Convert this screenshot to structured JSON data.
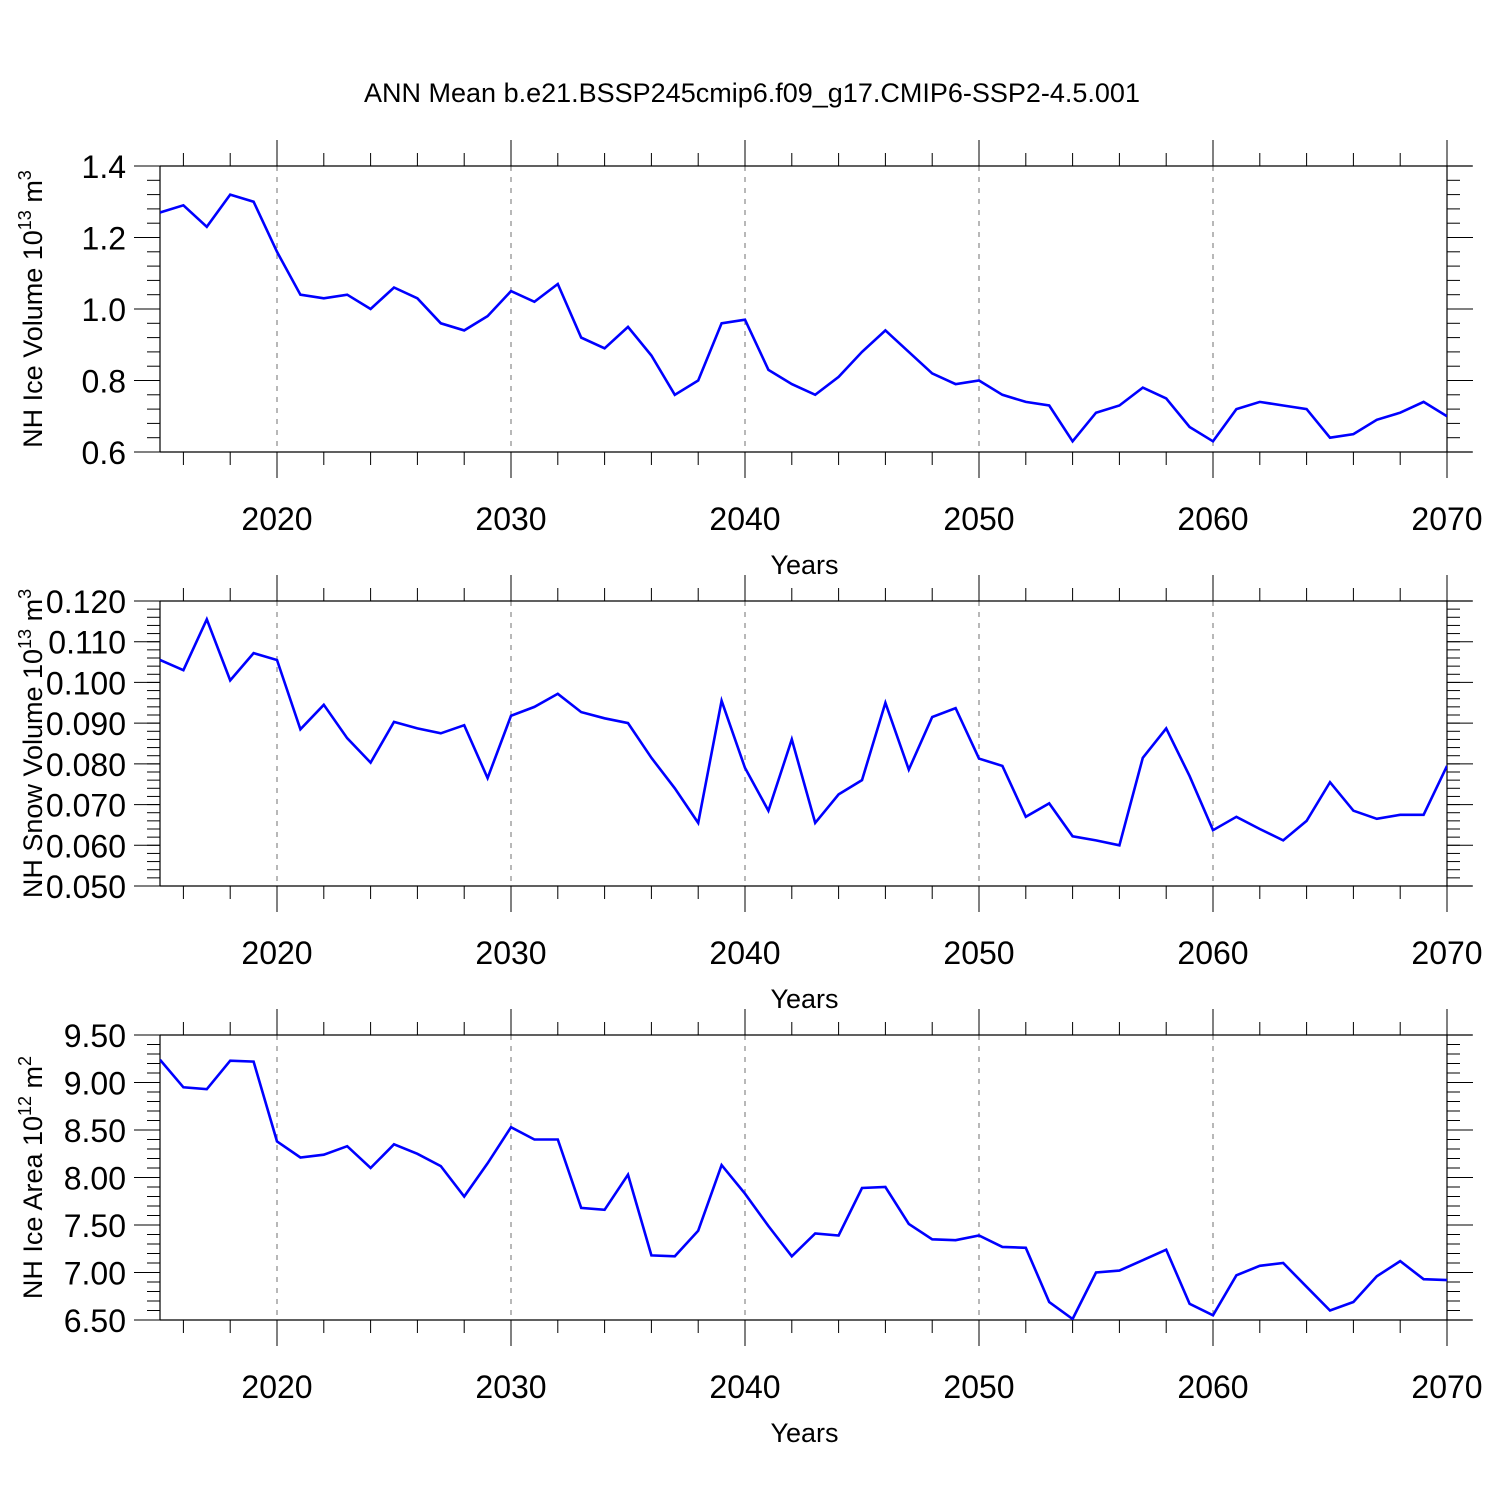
{
  "title": "ANN Mean b.e21.BSSP245cmip6.f09_g17.CMIP6-SSP2-4.5.001",
  "colors": {
    "line": "#0000ff",
    "grid": "#888888",
    "frame": "#000000"
  },
  "chart_data": [
    {
      "type": "line",
      "xlabel": "Years",
      "ylabel": "NH Ice Volume 10",
      "ylabel_sup": "13",
      "ylabel_unit": " m",
      "ylabel_unit_sup": "3",
      "xlim": [
        2015,
        2070
      ],
      "ylim": [
        0.6,
        1.4
      ],
      "xticks": [
        2020,
        2030,
        2040,
        2050,
        2060,
        2070
      ],
      "xtick_labels": [
        "2020",
        "2030",
        "2040",
        "2050",
        "2060",
        "2070"
      ],
      "yticks": [
        0.6,
        0.8,
        1.0,
        1.2,
        1.4
      ],
      "ytick_labels": [
        "0.6",
        "0.8",
        "1.0",
        "1.2",
        "1.4"
      ],
      "y_minor_step": 0.04,
      "grid": "vertical dashed at major x ticks",
      "x": [
        2015,
        2016,
        2017,
        2018,
        2019,
        2020,
        2021,
        2022,
        2023,
        2024,
        2025,
        2026,
        2027,
        2028,
        2029,
        2030,
        2031,
        2032,
        2033,
        2034,
        2035,
        2036,
        2037,
        2038,
        2039,
        2040,
        2041,
        2042,
        2043,
        2044,
        2045,
        2046,
        2047,
        2048,
        2049,
        2050,
        2051,
        2052,
        2053,
        2054,
        2055,
        2056,
        2057,
        2058,
        2059,
        2060,
        2061,
        2062,
        2063,
        2064,
        2065,
        2066,
        2067,
        2068,
        2069,
        2070
      ],
      "values": [
        1.27,
        1.29,
        1.23,
        1.32,
        1.3,
        1.16,
        1.04,
        1.03,
        1.04,
        1.0,
        1.06,
        1.03,
        0.96,
        0.94,
        0.98,
        1.05,
        1.02,
        1.07,
        0.92,
        0.89,
        0.95,
        0.87,
        0.76,
        0.8,
        0.96,
        0.97,
        0.83,
        0.79,
        0.76,
        0.81,
        0.88,
        0.94,
        0.88,
        0.82,
        0.79,
        0.8,
        0.76,
        0.74,
        0.73,
        0.63,
        0.71,
        0.73,
        0.78,
        0.75,
        0.67,
        0.63,
        0.72,
        0.74,
        0.73,
        0.72,
        0.64,
        0.65,
        0.69,
        0.71,
        0.74,
        0.7
      ]
    },
    {
      "type": "line",
      "xlabel": "Years",
      "ylabel": "NH Snow Volume 10",
      "ylabel_sup": "13",
      "ylabel_unit": " m",
      "ylabel_unit_sup": "3",
      "xlim": [
        2015,
        2070
      ],
      "ylim": [
        0.05,
        0.12
      ],
      "xticks": [
        2020,
        2030,
        2040,
        2050,
        2060,
        2070
      ],
      "xtick_labels": [
        "2020",
        "2030",
        "2040",
        "2050",
        "2060",
        "2070"
      ],
      "yticks": [
        0.05,
        0.06,
        0.07,
        0.08,
        0.09,
        0.1,
        0.11,
        0.12
      ],
      "ytick_labels": [
        "0.050",
        "0.060",
        "0.070",
        "0.080",
        "0.090",
        "0.100",
        "0.110",
        "0.120"
      ],
      "y_minor_step": 0.002,
      "grid": "vertical dashed at major x ticks",
      "x": [
        2015,
        2016,
        2017,
        2018,
        2019,
        2020,
        2021,
        2022,
        2023,
        2024,
        2025,
        2026,
        2027,
        2028,
        2029,
        2030,
        2031,
        2032,
        2033,
        2034,
        2035,
        2036,
        2037,
        2038,
        2039,
        2040,
        2041,
        2042,
        2043,
        2044,
        2045,
        2046,
        2047,
        2048,
        2049,
        2050,
        2051,
        2052,
        2053,
        2054,
        2055,
        2056,
        2057,
        2058,
        2059,
        2060,
        2061,
        2062,
        2063,
        2064,
        2065,
        2066,
        2067,
        2068,
        2069,
        2070
      ],
      "values": [
        0.1055,
        0.103,
        0.1155,
        0.1005,
        0.1072,
        0.1055,
        0.0885,
        0.0945,
        0.0863,
        0.0803,
        0.0903,
        0.0887,
        0.0875,
        0.0895,
        0.0765,
        0.0918,
        0.094,
        0.0972,
        0.0927,
        0.0912,
        0.09,
        0.0815,
        0.074,
        0.0655,
        0.0955,
        0.079,
        0.0685,
        0.086,
        0.0655,
        0.0725,
        0.076,
        0.095,
        0.0786,
        0.0915,
        0.0937,
        0.0813,
        0.0795,
        0.067,
        0.0703,
        0.0622,
        0.0612,
        0.06,
        0.0815,
        0.0887,
        0.077,
        0.0637,
        0.067,
        0.064,
        0.0612,
        0.066,
        0.0755,
        0.0685,
        0.0665,
        0.0675,
        0.0675,
        0.0795
      ]
    },
    {
      "type": "line",
      "xlabel": "Years",
      "ylabel": "NH Ice Area 10",
      "ylabel_sup": "12",
      "ylabel_unit": " m",
      "ylabel_unit_sup": "2",
      "xlim": [
        2015,
        2070
      ],
      "ylim": [
        6.5,
        9.5
      ],
      "xticks": [
        2020,
        2030,
        2040,
        2050,
        2060,
        2070
      ],
      "xtick_labels": [
        "2020",
        "2030",
        "2040",
        "2050",
        "2060",
        "2070"
      ],
      "yticks": [
        6.5,
        7.0,
        7.5,
        8.0,
        8.5,
        9.0,
        9.5
      ],
      "ytick_labels": [
        "6.50",
        "7.00",
        "7.50",
        "8.00",
        "8.50",
        "9.00",
        "9.50"
      ],
      "y_minor_step": 0.1,
      "grid": "vertical dashed at major x ticks",
      "x": [
        2015,
        2016,
        2017,
        2018,
        2019,
        2020,
        2021,
        2022,
        2023,
        2024,
        2025,
        2026,
        2027,
        2028,
        2029,
        2030,
        2031,
        2032,
        2033,
        2034,
        2035,
        2036,
        2037,
        2038,
        2039,
        2040,
        2041,
        2042,
        2043,
        2044,
        2045,
        2046,
        2047,
        2048,
        2049,
        2050,
        2051,
        2052,
        2053,
        2054,
        2055,
        2056,
        2057,
        2058,
        2059,
        2060,
        2061,
        2062,
        2063,
        2064,
        2065,
        2066,
        2067,
        2068,
        2069,
        2070
      ],
      "values": [
        9.24,
        8.95,
        8.93,
        9.23,
        9.22,
        8.38,
        8.21,
        8.24,
        8.33,
        8.1,
        8.35,
        8.25,
        8.12,
        7.8,
        8.15,
        8.53,
        8.4,
        8.4,
        7.68,
        7.66,
        8.03,
        7.18,
        7.17,
        7.44,
        8.13,
        7.83,
        7.49,
        7.17,
        7.41,
        7.39,
        7.89,
        7.9,
        7.51,
        7.35,
        7.34,
        7.39,
        7.27,
        7.26,
        6.69,
        6.51,
        7.0,
        7.02,
        7.13,
        7.24,
        6.67,
        6.55,
        6.97,
        7.07,
        7.1,
        6.85,
        6.6,
        6.69,
        6.96,
        7.12,
        6.93,
        6.92
      ]
    }
  ]
}
